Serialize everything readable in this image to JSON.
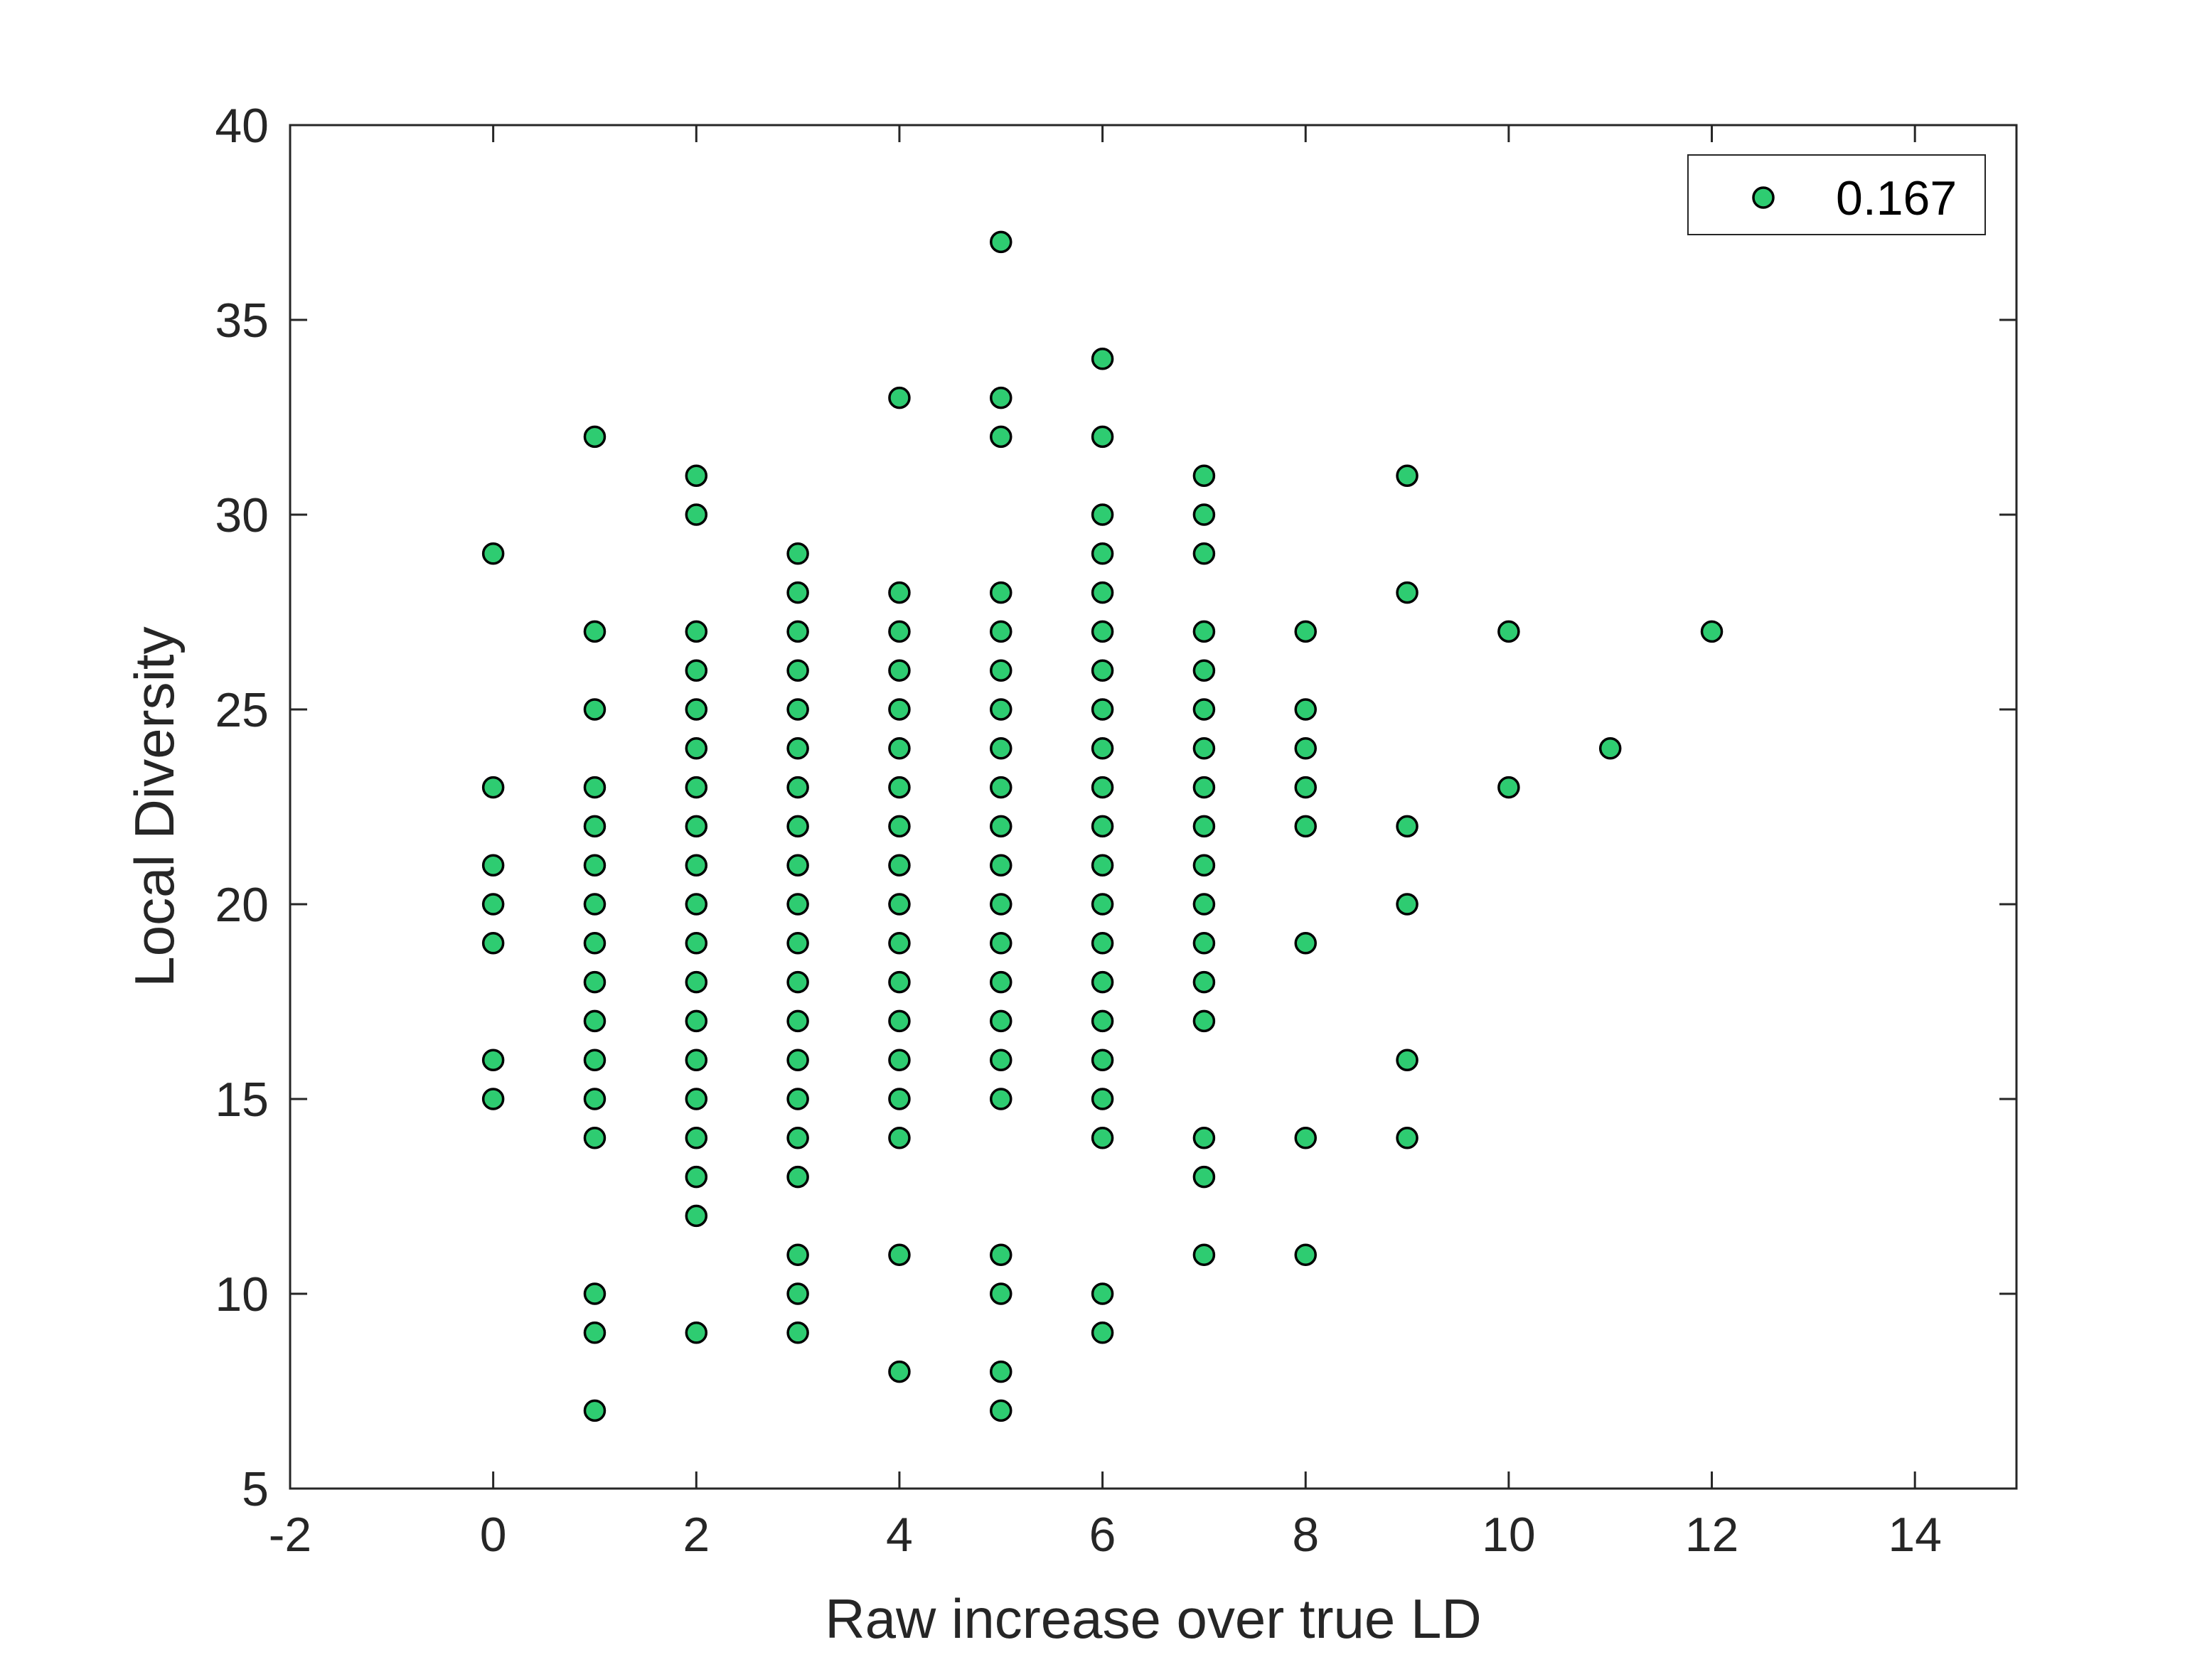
{
  "chart_data": {
    "type": "scatter",
    "title": "",
    "xlabel": "Raw increase over true LD",
    "ylabel": "Local Diversity",
    "xlim": [
      -2,
      15
    ],
    "ylim": [
      5,
      40
    ],
    "xticks": [
      -2,
      0,
      2,
      4,
      6,
      8,
      10,
      12,
      14
    ],
    "yticks": [
      5,
      10,
      15,
      20,
      25,
      30,
      35,
      40
    ],
    "grid": false,
    "legend_position": "top-right",
    "colors": {
      "marker_fill": "#2ecc71",
      "marker_edge": "#000000",
      "axes": "#262626"
    },
    "series": [
      {
        "name": "0.167",
        "points": [
          [
            0,
            29
          ],
          [
            0,
            23
          ],
          [
            0,
            21
          ],
          [
            0,
            20
          ],
          [
            0,
            19
          ],
          [
            0,
            16
          ],
          [
            0,
            15
          ],
          [
            1,
            32
          ],
          [
            1,
            27
          ],
          [
            1,
            25
          ],
          [
            1,
            23
          ],
          [
            1,
            22
          ],
          [
            1,
            21
          ],
          [
            1,
            20
          ],
          [
            1,
            19
          ],
          [
            1,
            18
          ],
          [
            1,
            17
          ],
          [
            1,
            16
          ],
          [
            1,
            15
          ],
          [
            1,
            14
          ],
          [
            1,
            10
          ],
          [
            1,
            9
          ],
          [
            1,
            7
          ],
          [
            2,
            31
          ],
          [
            2,
            30
          ],
          [
            2,
            27
          ],
          [
            2,
            26
          ],
          [
            2,
            25
          ],
          [
            2,
            24
          ],
          [
            2,
            23
          ],
          [
            2,
            22
          ],
          [
            2,
            21
          ],
          [
            2,
            20
          ],
          [
            2,
            19
          ],
          [
            2,
            18
          ],
          [
            2,
            17
          ],
          [
            2,
            16
          ],
          [
            2,
            15
          ],
          [
            2,
            14
          ],
          [
            2,
            13
          ],
          [
            2,
            12
          ],
          [
            2,
            9
          ],
          [
            3,
            29
          ],
          [
            3,
            28
          ],
          [
            3,
            27
          ],
          [
            3,
            26
          ],
          [
            3,
            25
          ],
          [
            3,
            24
          ],
          [
            3,
            23
          ],
          [
            3,
            22
          ],
          [
            3,
            21
          ],
          [
            3,
            20
          ],
          [
            3,
            19
          ],
          [
            3,
            18
          ],
          [
            3,
            17
          ],
          [
            3,
            16
          ],
          [
            3,
            15
          ],
          [
            3,
            14
          ],
          [
            3,
            13
          ],
          [
            3,
            11
          ],
          [
            3,
            10
          ],
          [
            3,
            9
          ],
          [
            4,
            33
          ],
          [
            4,
            28
          ],
          [
            4,
            27
          ],
          [
            4,
            26
          ],
          [
            4,
            25
          ],
          [
            4,
            24
          ],
          [
            4,
            23
          ],
          [
            4,
            22
          ],
          [
            4,
            21
          ],
          [
            4,
            20
          ],
          [
            4,
            19
          ],
          [
            4,
            18
          ],
          [
            4,
            17
          ],
          [
            4,
            16
          ],
          [
            4,
            15
          ],
          [
            4,
            14
          ],
          [
            4,
            11
          ],
          [
            4,
            8
          ],
          [
            5,
            37
          ],
          [
            5,
            33
          ],
          [
            5,
            32
          ],
          [
            5,
            28
          ],
          [
            5,
            27
          ],
          [
            5,
            26
          ],
          [
            5,
            25
          ],
          [
            5,
            24
          ],
          [
            5,
            23
          ],
          [
            5,
            22
          ],
          [
            5,
            21
          ],
          [
            5,
            20
          ],
          [
            5,
            19
          ],
          [
            5,
            18
          ],
          [
            5,
            17
          ],
          [
            5,
            16
          ],
          [
            5,
            15
          ],
          [
            5,
            11
          ],
          [
            5,
            10
          ],
          [
            5,
            8
          ],
          [
            5,
            7
          ],
          [
            6,
            34
          ],
          [
            6,
            32
          ],
          [
            6,
            30
          ],
          [
            6,
            29
          ],
          [
            6,
            28
          ],
          [
            6,
            27
          ],
          [
            6,
            26
          ],
          [
            6,
            25
          ],
          [
            6,
            24
          ],
          [
            6,
            23
          ],
          [
            6,
            22
          ],
          [
            6,
            21
          ],
          [
            6,
            20
          ],
          [
            6,
            19
          ],
          [
            6,
            18
          ],
          [
            6,
            17
          ],
          [
            6,
            16
          ],
          [
            6,
            15
          ],
          [
            6,
            14
          ],
          [
            6,
            10
          ],
          [
            6,
            9
          ],
          [
            7,
            31
          ],
          [
            7,
            30
          ],
          [
            7,
            29
          ],
          [
            7,
            27
          ],
          [
            7,
            26
          ],
          [
            7,
            25
          ],
          [
            7,
            24
          ],
          [
            7,
            23
          ],
          [
            7,
            22
          ],
          [
            7,
            21
          ],
          [
            7,
            20
          ],
          [
            7,
            19
          ],
          [
            7,
            18
          ],
          [
            7,
            17
          ],
          [
            7,
            14
          ],
          [
            7,
            13
          ],
          [
            7,
            11
          ],
          [
            8,
            27
          ],
          [
            8,
            25
          ],
          [
            8,
            24
          ],
          [
            8,
            23
          ],
          [
            8,
            22
          ],
          [
            8,
            19
          ],
          [
            8,
            14
          ],
          [
            8,
            11
          ],
          [
            9,
            31
          ],
          [
            9,
            28
          ],
          [
            9,
            22
          ],
          [
            9,
            20
          ],
          [
            9,
            16
          ],
          [
            9,
            14
          ],
          [
            10,
            27
          ],
          [
            10,
            23
          ],
          [
            11,
            24
          ],
          [
            12,
            27
          ]
        ]
      }
    ]
  }
}
